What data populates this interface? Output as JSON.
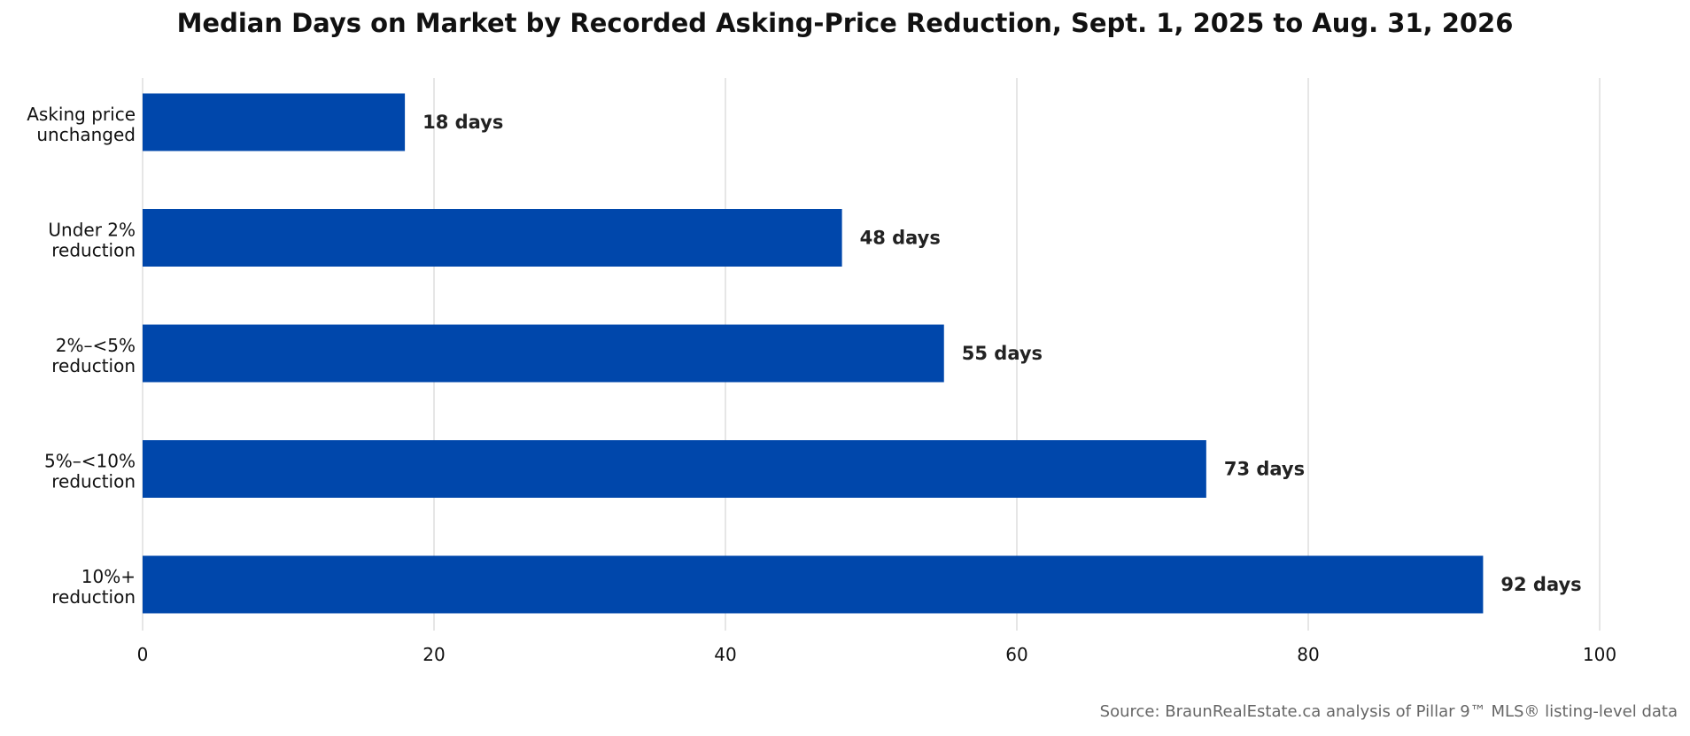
{
  "chart_data": {
    "type": "bar",
    "orientation": "horizontal",
    "title": "Median Days on Market by Recorded Asking-Price Reduction, Sept. 1, 2025 to Aug. 31, 2026",
    "categories": [
      [
        "Asking price",
        "unchanged"
      ],
      [
        "Under 2%",
        "reduction"
      ],
      [
        "2%–<5%",
        "reduction"
      ],
      [
        "5%–<10%",
        "reduction"
      ],
      [
        "10%+",
        "reduction"
      ]
    ],
    "values": [
      18,
      48,
      55,
      73,
      92
    ],
    "data_labels": [
      "18 days",
      "48 days",
      "55 days",
      "73 days",
      "92 days"
    ],
    "xlabel": "",
    "ylabel": "",
    "xlim": [
      0,
      100
    ],
    "xticks": [
      0,
      20,
      40,
      60,
      80,
      100
    ],
    "xtick_labels": [
      "0",
      "20",
      "40",
      "60",
      "80",
      "100"
    ],
    "grid": "vertical",
    "legend": "none",
    "bar_color": "#0047AB",
    "grid_color": "#dddddd",
    "label_color": "#222222",
    "source": "Source: BraunRealEstate.ca analysis of Pillar 9™ MLS® listing-level data"
  }
}
